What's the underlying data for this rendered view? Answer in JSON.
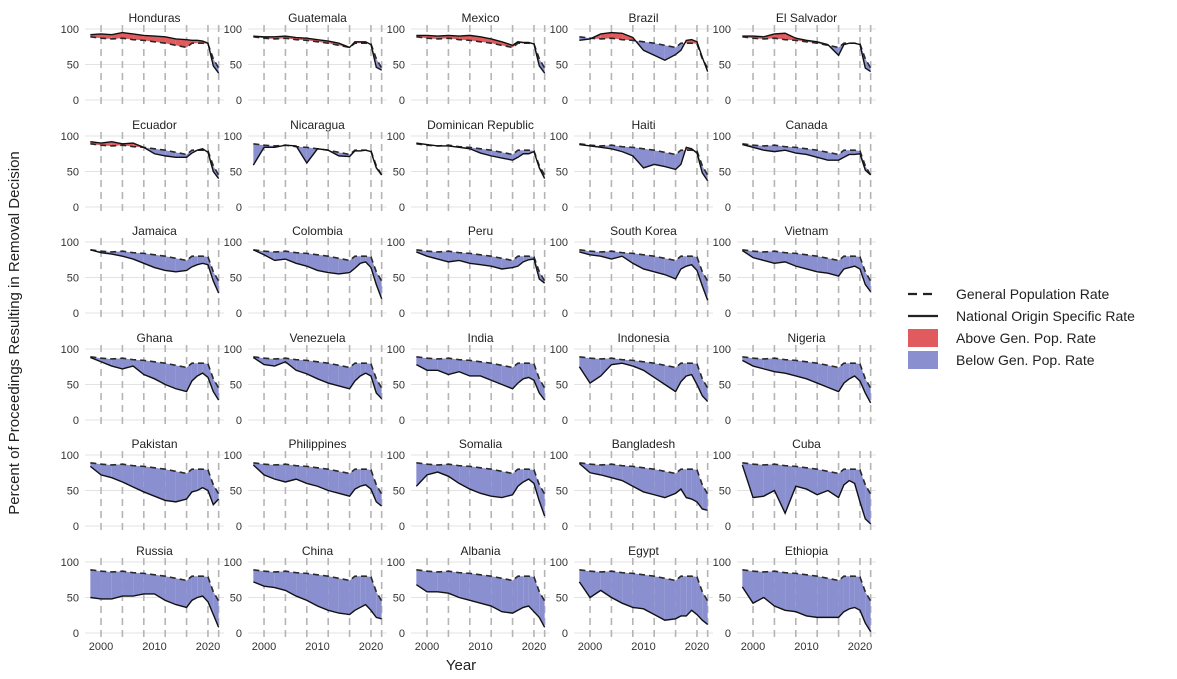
{
  "chart_data": {
    "type": "area",
    "title": "",
    "xlabel": "Year",
    "ylabel": "Percent of Proceedings Resulting in Removal Decision",
    "x_ticks": [
      2000,
      2010,
      2020
    ],
    "y_ticks": [
      0,
      50,
      100
    ],
    "xlim": [
      1997,
      2023
    ],
    "ylim": [
      0,
      100
    ],
    "vlines": [
      2000,
      2004,
      2008,
      2012,
      2016,
      2020,
      2022
    ],
    "legend_position": "right",
    "legend": [
      {
        "key": "general",
        "label": "General Population Rate",
        "kind": "dashed-line",
        "color": "#222222"
      },
      {
        "key": "national",
        "label": "National Origin Specific Rate",
        "kind": "solid-line",
        "color": "#222222"
      },
      {
        "key": "above",
        "label": "Above Gen. Pop. Rate",
        "kind": "fill",
        "color": "#e05a5e"
      },
      {
        "key": "below",
        "label": "Below Gen. Pop. Rate",
        "kind": "fill",
        "color": "#8a8fd0"
      }
    ],
    "years": [
      1998,
      2000,
      2002,
      2004,
      2006,
      2008,
      2010,
      2012,
      2014,
      2016,
      2017,
      2018,
      2019,
      2020,
      2021,
      2022
    ],
    "general_population_rate": [
      89,
      87,
      86,
      87,
      85,
      84,
      82,
      80,
      77,
      74,
      80,
      80,
      80,
      79,
      58,
      45
    ],
    "series": [
      {
        "name": "Honduras",
        "values": [
          92,
          93,
          92,
          95,
          93,
          91,
          90,
          89,
          86,
          85,
          84,
          84,
          83,
          80,
          48,
          38
        ]
      },
      {
        "name": "Guatemala",
        "values": [
          90,
          89,
          89,
          90,
          88,
          87,
          85,
          83,
          80,
          74,
          82,
          82,
          82,
          78,
          46,
          42
        ]
      },
      {
        "name": "Mexico",
        "values": [
          91,
          91,
          90,
          91,
          90,
          91,
          89,
          86,
          82,
          77,
          82,
          81,
          81,
          79,
          48,
          38
        ]
      },
      {
        "name": "Brazil",
        "values": [
          84,
          86,
          93,
          95,
          94,
          88,
          70,
          63,
          56,
          64,
          70,
          84,
          85,
          82,
          60,
          40
        ]
      },
      {
        "name": "El Salvador",
        "values": [
          90,
          90,
          89,
          93,
          94,
          87,
          84,
          82,
          78,
          63,
          78,
          80,
          80,
          78,
          45,
          40
        ]
      },
      {
        "name": "Ecuador",
        "values": [
          92,
          90,
          92,
          89,
          90,
          84,
          75,
          72,
          70,
          70,
          76,
          80,
          82,
          77,
          50,
          40
        ]
      },
      {
        "name": "Nicaragua",
        "values": [
          59,
          84,
          84,
          87,
          86,
          62,
          82,
          80,
          72,
          71,
          79,
          79,
          80,
          78,
          55,
          45
        ]
      },
      {
        "name": "Dominican Republic",
        "values": [
          90,
          88,
          86,
          86,
          84,
          82,
          76,
          72,
          69,
          66,
          70,
          75,
          75,
          78,
          55,
          40
        ]
      },
      {
        "name": "Haiti",
        "values": [
          88,
          86,
          84,
          82,
          78,
          72,
          55,
          60,
          57,
          53,
          60,
          84,
          82,
          76,
          48,
          37
        ]
      },
      {
        "name": "Canada",
        "values": [
          88,
          84,
          80,
          78,
          80,
          76,
          74,
          70,
          66,
          66,
          70,
          74,
          74,
          75,
          52,
          45
        ]
      },
      {
        "name": "Jamaica",
        "values": [
          89,
          85,
          83,
          80,
          76,
          70,
          64,
          60,
          58,
          60,
          65,
          68,
          70,
          68,
          45,
          28
        ]
      },
      {
        "name": "Colombia",
        "values": [
          89,
          82,
          74,
          76,
          70,
          66,
          60,
          57,
          55,
          57,
          63,
          70,
          72,
          64,
          40,
          20
        ]
      },
      {
        "name": "Peru",
        "values": [
          86,
          80,
          76,
          72,
          74,
          70,
          68,
          66,
          62,
          64,
          66,
          72,
          75,
          76,
          48,
          42
        ]
      },
      {
        "name": "South Korea",
        "values": [
          86,
          82,
          80,
          76,
          80,
          70,
          62,
          58,
          54,
          48,
          62,
          66,
          68,
          60,
          38,
          18
        ]
      },
      {
        "name": "Vietnam",
        "values": [
          88,
          78,
          74,
          70,
          72,
          66,
          62,
          58,
          56,
          52,
          62,
          64,
          66,
          62,
          40,
          30
        ]
      },
      {
        "name": "Ghana",
        "values": [
          88,
          82,
          76,
          72,
          76,
          64,
          58,
          50,
          44,
          40,
          55,
          62,
          66,
          60,
          40,
          28
        ]
      },
      {
        "name": "Venezuela",
        "values": [
          88,
          78,
          76,
          82,
          70,
          65,
          58,
          52,
          48,
          44,
          55,
          62,
          66,
          62,
          38,
          30
        ]
      },
      {
        "name": "India",
        "values": [
          78,
          70,
          70,
          64,
          68,
          62,
          62,
          56,
          50,
          44,
          52,
          58,
          60,
          56,
          38,
          28
        ]
      },
      {
        "name": "Indonesia",
        "values": [
          75,
          52,
          62,
          78,
          80,
          76,
          70,
          60,
          50,
          40,
          54,
          62,
          64,
          50,
          34,
          26
        ]
      },
      {
        "name": "Nigeria",
        "values": [
          84,
          76,
          72,
          68,
          66,
          62,
          58,
          52,
          46,
          40,
          52,
          58,
          62,
          55,
          38,
          24
        ]
      },
      {
        "name": "Pakistan",
        "values": [
          84,
          72,
          68,
          62,
          55,
          48,
          42,
          36,
          34,
          38,
          48,
          50,
          54,
          50,
          30,
          38
        ]
      },
      {
        "name": "Philippines",
        "values": [
          86,
          72,
          66,
          62,
          66,
          60,
          56,
          50,
          46,
          42,
          52,
          56,
          58,
          52,
          34,
          28
        ]
      },
      {
        "name": "Somalia",
        "values": [
          56,
          72,
          76,
          70,
          60,
          52,
          46,
          42,
          40,
          44,
          56,
          62,
          66,
          60,
          35,
          14
        ]
      },
      {
        "name": "Bangladesh",
        "values": [
          88,
          75,
          72,
          68,
          64,
          56,
          48,
          44,
          40,
          46,
          52,
          40,
          38,
          34,
          24,
          22
        ]
      },
      {
        "name": "Cuba",
        "values": [
          86,
          40,
          42,
          50,
          18,
          56,
          52,
          44,
          50,
          40,
          58,
          64,
          60,
          34,
          10,
          3
        ]
      },
      {
        "name": "Russia",
        "values": [
          50,
          48,
          48,
          52,
          52,
          55,
          55,
          46,
          40,
          36,
          46,
          50,
          52,
          44,
          26,
          8
        ]
      },
      {
        "name": "China",
        "values": [
          72,
          66,
          64,
          60,
          52,
          46,
          38,
          32,
          28,
          26,
          32,
          36,
          40,
          32,
          22,
          20
        ]
      },
      {
        "name": "Albania",
        "values": [
          68,
          58,
          58,
          56,
          50,
          46,
          42,
          38,
          30,
          28,
          32,
          36,
          38,
          30,
          22,
          8
        ]
      },
      {
        "name": "Egypt",
        "values": [
          72,
          50,
          60,
          50,
          42,
          36,
          34,
          26,
          18,
          20,
          24,
          24,
          32,
          26,
          18,
          12
        ]
      },
      {
        "name": "Ethiopia",
        "values": [
          65,
          42,
          50,
          38,
          32,
          30,
          24,
          22,
          22,
          22,
          30,
          34,
          36,
          32,
          14,
          2
        ]
      }
    ]
  }
}
